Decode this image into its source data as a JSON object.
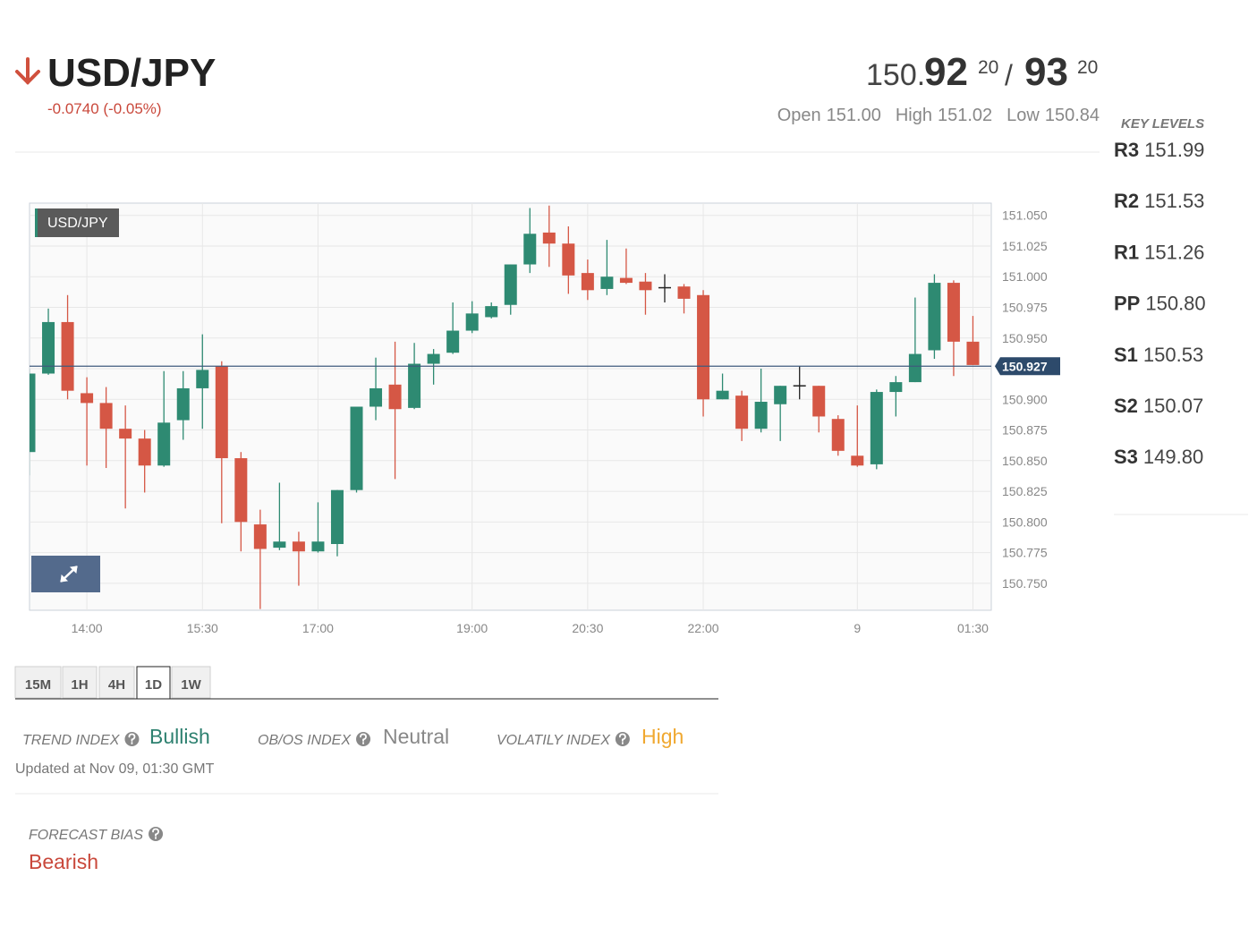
{
  "header": {
    "symbol": "USD/JPY",
    "change": "-0.0740 (-0.05%)",
    "quote": {
      "bid_prefix": "150.",
      "bid": "92",
      "bid_fraction": "20",
      "separator": "/",
      "ask": "93",
      "ask_fraction": "20"
    },
    "stats": [
      {
        "label": "Open",
        "value": "151.00"
      },
      {
        "label": "High",
        "value": "151.02"
      },
      {
        "label": "Low",
        "value": "150.84"
      }
    ]
  },
  "key_levels": {
    "title": "KEY LEVELS",
    "levels": [
      {
        "name": "R3",
        "value": "151.99"
      },
      {
        "name": "R2",
        "value": "151.53"
      },
      {
        "name": "R1",
        "value": "151.26"
      },
      {
        "name": "PP",
        "value": "150.80"
      },
      {
        "name": "S1",
        "value": "150.53"
      },
      {
        "name": "S2",
        "value": "150.07"
      },
      {
        "name": "S3",
        "value": "149.80"
      }
    ]
  },
  "chart_data": {
    "type": "candlestick",
    "label": "USD/JPY",
    "categories": [
      null,
      null,
      null,
      "14:00",
      null,
      null,
      null,
      null,
      null,
      "15:30",
      null,
      null,
      null,
      null,
      null,
      "17:00",
      null,
      null,
      null,
      null,
      null,
      null,
      null,
      "19:00",
      null,
      null,
      null,
      null,
      null,
      "20:30",
      null,
      null,
      null,
      null,
      null,
      "22:00",
      null,
      null,
      null,
      null,
      null,
      null,
      null,
      "9",
      null,
      null,
      null,
      null,
      null,
      "01:30"
    ],
    "open": [
      150.857,
      150.921,
      150.963,
      150.905,
      150.897,
      150.876,
      150.868,
      150.846,
      150.883,
      150.909,
      150.927,
      150.852,
      150.798,
      150.779,
      150.784,
      150.776,
      150.782,
      150.826,
      150.894,
      150.912,
      150.893,
      150.929,
      150.938,
      150.956,
      150.967,
      150.977,
      151.01,
      151.036,
      151.027,
      151.003,
      150.99,
      150.999,
      150.996,
      150.991,
      150.992,
      150.985,
      150.9,
      150.903,
      150.876,
      150.896,
      150.911,
      150.911,
      150.884,
      150.854,
      150.847,
      150.906,
      150.914,
      150.94,
      150.995,
      150.947
    ],
    "high": [
      150.925,
      150.974,
      150.985,
      150.918,
      150.91,
      150.895,
      150.875,
      150.923,
      150.923,
      150.953,
      150.931,
      150.857,
      150.81,
      150.832,
      150.792,
      150.816,
      150.826,
      150.894,
      150.934,
      150.947,
      150.946,
      150.941,
      150.979,
      150.98,
      150.979,
      151.01,
      151.056,
      151.058,
      151.041,
      151.014,
      151.03,
      151.023,
      151.003,
      151.002,
      150.994,
      150.989,
      150.921,
      150.907,
      150.925,
      150.911,
      150.927,
      150.911,
      150.887,
      150.895,
      150.908,
      150.919,
      150.983,
      151.002,
      150.997,
      150.968
    ],
    "low": [
      150.838,
      150.92,
      150.9,
      150.846,
      150.844,
      150.811,
      150.824,
      150.845,
      150.867,
      150.876,
      150.799,
      150.776,
      150.729,
      150.777,
      150.748,
      150.775,
      150.772,
      150.824,
      150.883,
      150.835,
      150.892,
      150.912,
      150.937,
      150.954,
      150.966,
      150.969,
      151.003,
      151.008,
      150.986,
      150.981,
      150.985,
      150.994,
      150.969,
      150.979,
      150.97,
      150.886,
      150.9,
      150.866,
      150.873,
      150.866,
      150.9,
      150.873,
      150.854,
      150.845,
      150.843,
      150.886,
      150.914,
      150.933,
      150.919,
      150.928
    ],
    "close": [
      150.921,
      150.963,
      150.907,
      150.897,
      150.876,
      150.868,
      150.846,
      150.881,
      150.909,
      150.924,
      150.852,
      150.8,
      150.778,
      150.784,
      150.776,
      150.784,
      150.826,
      150.894,
      150.909,
      150.892,
      150.929,
      150.937,
      150.956,
      150.97,
      150.976,
      151.01,
      151.035,
      151.027,
      151.001,
      150.989,
      151.0,
      150.995,
      150.989,
      150.991,
      150.982,
      150.9,
      150.907,
      150.876,
      150.898,
      150.911,
      150.911,
      150.886,
      150.858,
      150.846,
      150.906,
      150.914,
      150.937,
      150.995,
      150.947,
      150.928
    ],
    "up_color": "#2e8a72",
    "down_color": "#d55745",
    "doji_color": "#222222",
    "current_price": 150.927,
    "ylim": [
      150.728,
      151.06
    ],
    "yticks": [
      {
        "value": 150.75,
        "label": "150.750"
      },
      150.775,
      {
        "value": 150.8,
        "label": "150.800"
      },
      150.825,
      {
        "value": 150.85,
        "label": "150.850"
      },
      150.875,
      {
        "value": 150.9,
        "label": "150.900"
      },
      150.925,
      {
        "value": 150.95,
        "label": "150.950"
      },
      150.975,
      {
        "value": 151,
        "label": "151.000"
      },
      151.025,
      {
        "value": 151.05,
        "label": "151.050"
      }
    ],
    "grid": true
  },
  "timeframes": {
    "options": [
      "15M",
      "1H",
      "4H",
      "1D",
      "1W"
    ],
    "active": "1D"
  },
  "indexes": [
    {
      "label": "TREND INDEX",
      "value": "Bullish",
      "color": "#2e8170"
    },
    {
      "label": "OB/OS INDEX",
      "value": "Neutral",
      "color": "#888888"
    },
    {
      "label": "VOLATILY INDEX",
      "value": "High",
      "color": "#f0a830"
    }
  ],
  "updated": "Updated at Nov 09, 01:30 GMT",
  "forecast": {
    "label": "FORECAST BIAS",
    "value": "Bearish",
    "color": "#c9483b"
  }
}
